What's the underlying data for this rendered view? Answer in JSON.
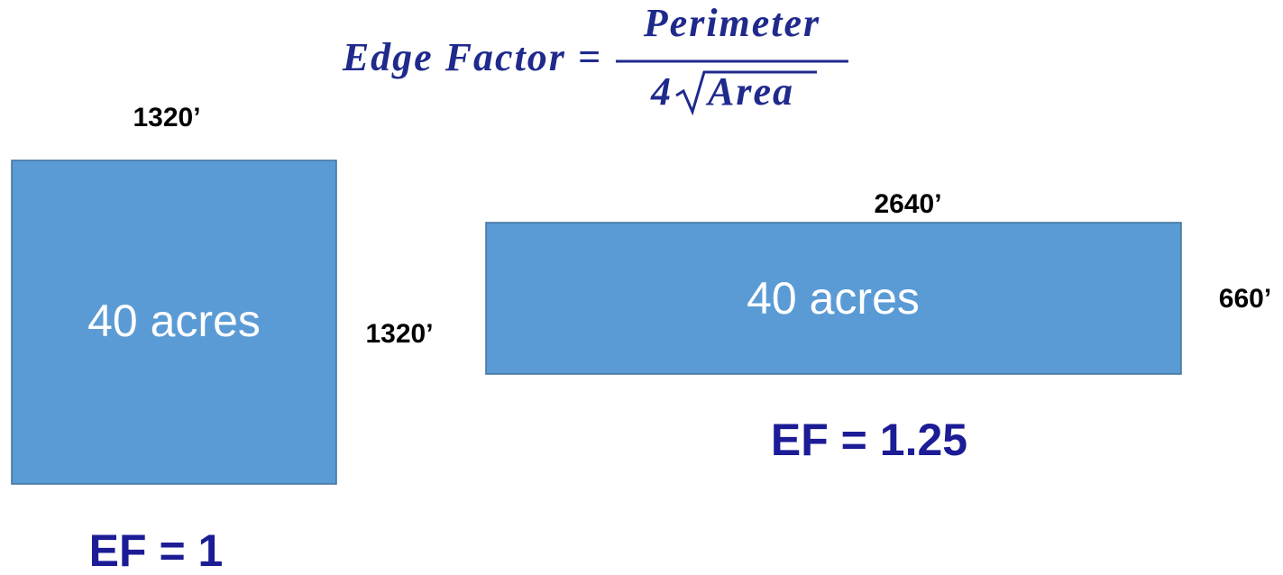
{
  "formula": {
    "lhs": "Edge Factor =",
    "numerator": "Perimeter",
    "coefficient": "4",
    "radicand": "Area"
  },
  "square": {
    "top_length": "1320’",
    "side_length": "1320’",
    "area": "40 acres",
    "result": "EF = 1"
  },
  "rectangle": {
    "top_length": "2640’",
    "side_length": "660’",
    "area": "40 acres",
    "result": "EF = 1.25"
  }
}
